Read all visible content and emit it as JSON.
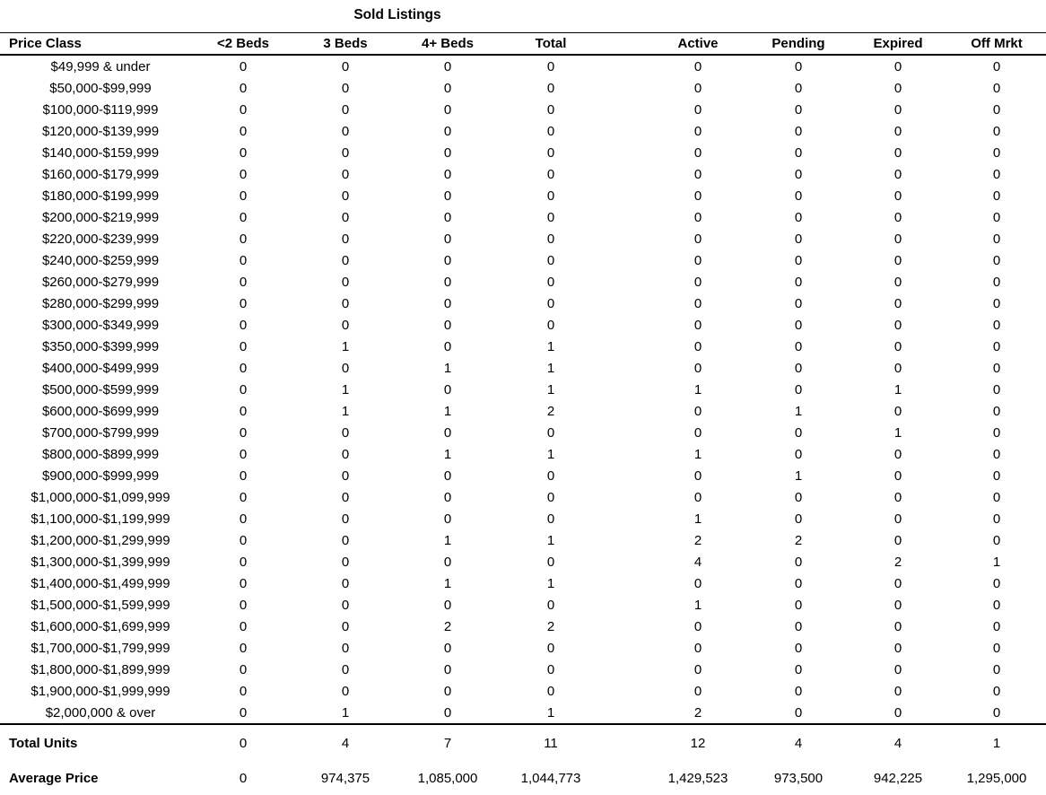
{
  "title": "Sold Listings",
  "table": {
    "columns": [
      "Price Class",
      "<2 Beds",
      "3 Beds",
      "4+ Beds",
      "Total",
      "Active",
      "Pending",
      "Expired",
      "Off Mrkt"
    ],
    "rows": [
      {
        "price_class": "$49,999 & under",
        "values": [
          0,
          0,
          0,
          0,
          0,
          0,
          0,
          0
        ]
      },
      {
        "price_class": "$50,000-$99,999",
        "values": [
          0,
          0,
          0,
          0,
          0,
          0,
          0,
          0
        ]
      },
      {
        "price_class": "$100,000-$119,999",
        "values": [
          0,
          0,
          0,
          0,
          0,
          0,
          0,
          0
        ]
      },
      {
        "price_class": "$120,000-$139,999",
        "values": [
          0,
          0,
          0,
          0,
          0,
          0,
          0,
          0
        ]
      },
      {
        "price_class": "$140,000-$159,999",
        "values": [
          0,
          0,
          0,
          0,
          0,
          0,
          0,
          0
        ]
      },
      {
        "price_class": "$160,000-$179,999",
        "values": [
          0,
          0,
          0,
          0,
          0,
          0,
          0,
          0
        ]
      },
      {
        "price_class": "$180,000-$199,999",
        "values": [
          0,
          0,
          0,
          0,
          0,
          0,
          0,
          0
        ]
      },
      {
        "price_class": "$200,000-$219,999",
        "values": [
          0,
          0,
          0,
          0,
          0,
          0,
          0,
          0
        ]
      },
      {
        "price_class": "$220,000-$239,999",
        "values": [
          0,
          0,
          0,
          0,
          0,
          0,
          0,
          0
        ]
      },
      {
        "price_class": "$240,000-$259,999",
        "values": [
          0,
          0,
          0,
          0,
          0,
          0,
          0,
          0
        ]
      },
      {
        "price_class": "$260,000-$279,999",
        "values": [
          0,
          0,
          0,
          0,
          0,
          0,
          0,
          0
        ]
      },
      {
        "price_class": "$280,000-$299,999",
        "values": [
          0,
          0,
          0,
          0,
          0,
          0,
          0,
          0
        ]
      },
      {
        "price_class": "$300,000-$349,999",
        "values": [
          0,
          0,
          0,
          0,
          0,
          0,
          0,
          0
        ]
      },
      {
        "price_class": "$350,000-$399,999",
        "values": [
          0,
          1,
          0,
          1,
          0,
          0,
          0,
          0
        ]
      },
      {
        "price_class": "$400,000-$499,999",
        "values": [
          0,
          0,
          1,
          1,
          0,
          0,
          0,
          0
        ]
      },
      {
        "price_class": "$500,000-$599,999",
        "values": [
          0,
          1,
          0,
          1,
          1,
          0,
          1,
          0
        ]
      },
      {
        "price_class": "$600,000-$699,999",
        "values": [
          0,
          1,
          1,
          2,
          0,
          1,
          0,
          0
        ]
      },
      {
        "price_class": "$700,000-$799,999",
        "values": [
          0,
          0,
          0,
          0,
          0,
          0,
          1,
          0
        ]
      },
      {
        "price_class": "$800,000-$899,999",
        "values": [
          0,
          0,
          1,
          1,
          1,
          0,
          0,
          0
        ]
      },
      {
        "price_class": "$900,000-$999,999",
        "values": [
          0,
          0,
          0,
          0,
          0,
          1,
          0,
          0
        ]
      },
      {
        "price_class": "$1,000,000-$1,099,999",
        "values": [
          0,
          0,
          0,
          0,
          0,
          0,
          0,
          0
        ]
      },
      {
        "price_class": "$1,100,000-$1,199,999",
        "values": [
          0,
          0,
          0,
          0,
          1,
          0,
          0,
          0
        ]
      },
      {
        "price_class": "$1,200,000-$1,299,999",
        "values": [
          0,
          0,
          1,
          1,
          2,
          2,
          0,
          0
        ]
      },
      {
        "price_class": "$1,300,000-$1,399,999",
        "values": [
          0,
          0,
          0,
          0,
          4,
          0,
          2,
          1
        ]
      },
      {
        "price_class": "$1,400,000-$1,499,999",
        "values": [
          0,
          0,
          1,
          1,
          0,
          0,
          0,
          0
        ]
      },
      {
        "price_class": "$1,500,000-$1,599,999",
        "values": [
          0,
          0,
          0,
          0,
          1,
          0,
          0,
          0
        ]
      },
      {
        "price_class": "$1,600,000-$1,699,999",
        "values": [
          0,
          0,
          2,
          2,
          0,
          0,
          0,
          0
        ]
      },
      {
        "price_class": "$1,700,000-$1,799,999",
        "values": [
          0,
          0,
          0,
          0,
          0,
          0,
          0,
          0
        ]
      },
      {
        "price_class": "$1,800,000-$1,899,999",
        "values": [
          0,
          0,
          0,
          0,
          0,
          0,
          0,
          0
        ]
      },
      {
        "price_class": "$1,900,000-$1,999,999",
        "values": [
          0,
          0,
          0,
          0,
          0,
          0,
          0,
          0
        ]
      },
      {
        "price_class": "$2,000,000 & over",
        "values": [
          0,
          1,
          0,
          1,
          2,
          0,
          0,
          0
        ]
      }
    ],
    "total_units": {
      "label": "Total Units",
      "values": [
        "0",
        "4",
        "7",
        "11",
        "12",
        "4",
        "4",
        "1"
      ]
    },
    "average_price": {
      "label": "Average Price",
      "values": [
        "0",
        "974,375",
        "1,085,000",
        "1,044,773",
        "1,429,523",
        "973,500",
        "942,225",
        "1,295,000"
      ]
    }
  },
  "colors": {
    "text": "#000000",
    "background": "#ffffff",
    "rule": "#000000"
  }
}
